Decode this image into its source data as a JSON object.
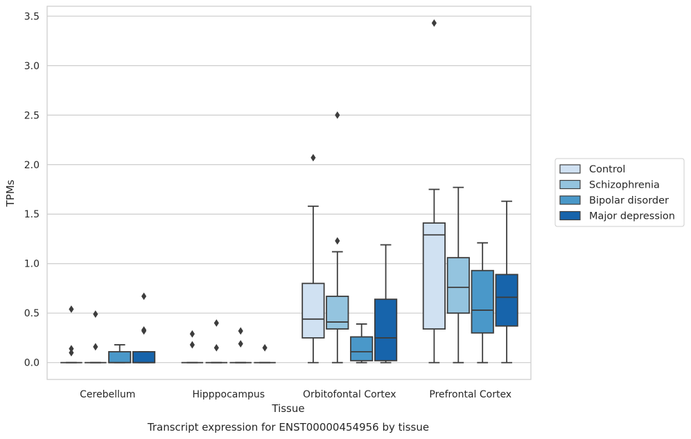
{
  "chart_data": {
    "type": "box",
    "title": "Transcript expression for ENST00000454956 by tissue",
    "xlabel": "Tissue",
    "ylabel": "TPMs",
    "ylim": [
      -0.17,
      3.6
    ],
    "yticks": [
      "0.0",
      "0.5",
      "1.0",
      "1.5",
      "2.0",
      "2.5",
      "3.0",
      "3.5"
    ],
    "grid": "horizontal",
    "legend_position": "right",
    "categories": [
      "Cerebellum",
      "Hipppocampus",
      "Orbitofontal Cortex",
      "Prefrontal Cortex"
    ],
    "series": [
      {
        "name": "Control",
        "color": "#d0e1f2",
        "boxes": [
          {
            "q1": 0,
            "median": 0,
            "q3": 0,
            "whisker_low": 0,
            "whisker_high": 0,
            "outliers": [
              0.54,
              0.14,
              0.1
            ]
          },
          {
            "q1": 0,
            "median": 0,
            "q3": 0,
            "whisker_low": 0,
            "whisker_high": 0,
            "outliers": [
              0.29,
              0.18
            ]
          },
          {
            "q1": 0.25,
            "median": 0.44,
            "q3": 0.8,
            "whisker_low": 0,
            "whisker_high": 1.58,
            "outliers": [
              2.07
            ]
          },
          {
            "q1": 0.34,
            "median": 1.29,
            "q3": 1.41,
            "whisker_low": 0,
            "whisker_high": 1.75,
            "outliers": [
              3.43
            ]
          }
        ]
      },
      {
        "name": "Schizophrenia",
        "color": "#94c4df",
        "boxes": [
          {
            "q1": 0,
            "median": 0,
            "q3": 0,
            "whisker_low": 0,
            "whisker_high": 0,
            "outliers": [
              0.49,
              0.16
            ]
          },
          {
            "q1": 0,
            "median": 0,
            "q3": 0,
            "whisker_low": 0,
            "whisker_high": 0,
            "outliers": [
              0.4,
              0.15
            ]
          },
          {
            "q1": 0.34,
            "median": 0.41,
            "q3": 0.67,
            "whisker_low": 0,
            "whisker_high": 1.12,
            "outliers": [
              2.5,
              1.23
            ]
          },
          {
            "q1": 0.5,
            "median": 0.76,
            "q3": 1.06,
            "whisker_low": 0,
            "whisker_high": 1.77,
            "outliers": []
          }
        ]
      },
      {
        "name": "Bipolar disorder",
        "color": "#4a98c9",
        "boxes": [
          {
            "q1": 0,
            "median": 0,
            "q3": 0.11,
            "whisker_low": 0,
            "whisker_high": 0.18,
            "outliers": []
          },
          {
            "q1": 0,
            "median": 0,
            "q3": 0,
            "whisker_low": 0,
            "whisker_high": 0,
            "outliers": [
              0.32,
              0.19
            ]
          },
          {
            "q1": 0.02,
            "median": 0.11,
            "q3": 0.26,
            "whisker_low": 0,
            "whisker_high": 0.39,
            "outliers": []
          },
          {
            "q1": 0.3,
            "median": 0.53,
            "q3": 0.93,
            "whisker_low": 0,
            "whisker_high": 1.21,
            "outliers": []
          }
        ]
      },
      {
        "name": "Major depression",
        "color": "#1764ab",
        "boxes": [
          {
            "q1": 0,
            "median": 0,
            "q3": 0.11,
            "whisker_low": 0,
            "whisker_high": 0.11,
            "outliers": [
              0.67,
              0.33,
              0.32
            ]
          },
          {
            "q1": 0,
            "median": 0,
            "q3": 0,
            "whisker_low": 0,
            "whisker_high": 0,
            "outliers": [
              0.15
            ]
          },
          {
            "q1": 0.02,
            "median": 0.25,
            "q3": 0.64,
            "whisker_low": 0,
            "whisker_high": 1.19,
            "outliers": []
          },
          {
            "q1": 0.37,
            "median": 0.66,
            "q3": 0.89,
            "whisker_low": 0,
            "whisker_high": 1.63,
            "outliers": []
          }
        ]
      }
    ]
  }
}
